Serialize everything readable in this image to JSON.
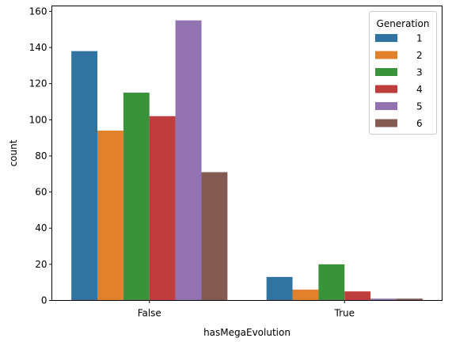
{
  "chart_data": {
    "type": "bar",
    "xlabel": "hasMegaEvolution",
    "ylabel": "count",
    "categories": [
      "False",
      "True"
    ],
    "ylim": [
      0,
      163
    ],
    "yticks": [
      0,
      20,
      40,
      60,
      80,
      100,
      120,
      140,
      160
    ],
    "ytick_labels": [
      "0",
      "20",
      "40",
      "60",
      "80",
      "100",
      "120",
      "140",
      "160"
    ],
    "grid": false,
    "legend": {
      "title": "Generation",
      "placement": "top-right"
    },
    "series": [
      {
        "name": "1",
        "color": "#3274a1",
        "values": [
          138,
          13
        ]
      },
      {
        "name": "2",
        "color": "#e1812c",
        "values": [
          94,
          6
        ]
      },
      {
        "name": "3",
        "color": "#3a923a",
        "values": [
          115,
          20
        ]
      },
      {
        "name": "4",
        "color": "#c03d3e",
        "values": [
          102,
          5
        ]
      },
      {
        "name": "5",
        "color": "#9372b2",
        "values": [
          155,
          1
        ]
      },
      {
        "name": "6",
        "color": "#845b53",
        "values": [
          71,
          1
        ]
      }
    ]
  }
}
